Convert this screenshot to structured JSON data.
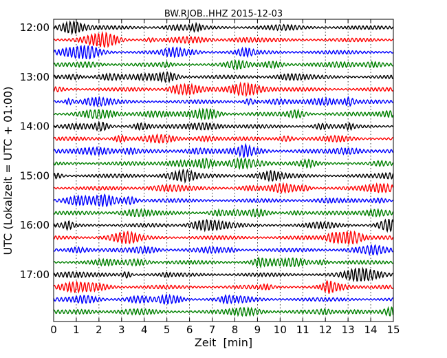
{
  "chart_data": {
    "type": "line",
    "subtype": "seismogram-dayplot",
    "title": "BW.RJOB..HHZ 2015-12-03",
    "xlabel": "Zeit  [min]",
    "ylabel": "UTC (Lokalzeit = UTC + 01:00)",
    "xlim": [
      0,
      15
    ],
    "x_ticks": [
      0,
      1,
      2,
      3,
      4,
      5,
      6,
      7,
      8,
      9,
      10,
      11,
      12,
      13,
      14,
      15
    ],
    "x_tick_labels": [
      "0",
      "1",
      "2",
      "3",
      "4",
      "5",
      "6",
      "7",
      "8",
      "9",
      "10",
      "11",
      "12",
      "13",
      "14",
      "15"
    ],
    "y_tick_labels": [
      "12:00",
      "13:00",
      "14:00",
      "15:00",
      "16:00",
      "17:00"
    ],
    "traces_per_hour": 4,
    "minutes_per_trace": 15,
    "grid": "vertical dotted lines at each minute",
    "colors": [
      "#000000",
      "#ff0000",
      "#0000ff",
      "#008000"
    ],
    "series": [
      {
        "start": "12:00",
        "color": "#000000"
      },
      {
        "start": "12:15",
        "color": "#ff0000"
      },
      {
        "start": "12:30",
        "color": "#0000ff"
      },
      {
        "start": "12:45",
        "color": "#008000"
      },
      {
        "start": "13:00",
        "color": "#000000"
      },
      {
        "start": "13:15",
        "color": "#ff0000"
      },
      {
        "start": "13:30",
        "color": "#0000ff"
      },
      {
        "start": "13:45",
        "color": "#008000"
      },
      {
        "start": "14:00",
        "color": "#000000"
      },
      {
        "start": "14:15",
        "color": "#ff0000"
      },
      {
        "start": "14:30",
        "color": "#0000ff"
      },
      {
        "start": "14:45",
        "color": "#008000"
      },
      {
        "start": "15:00",
        "color": "#000000"
      },
      {
        "start": "15:15",
        "color": "#ff0000"
      },
      {
        "start": "15:30",
        "color": "#0000ff"
      },
      {
        "start": "15:45",
        "color": "#008000"
      },
      {
        "start": "16:00",
        "color": "#000000"
      },
      {
        "start": "16:15",
        "color": "#ff0000"
      },
      {
        "start": "16:30",
        "color": "#0000ff"
      },
      {
        "start": "16:45",
        "color": "#008000"
      },
      {
        "start": "17:00",
        "color": "#000000"
      },
      {
        "start": "17:15",
        "color": "#ff0000"
      },
      {
        "start": "17:30",
        "color": "#0000ff"
      },
      {
        "start": "17:45",
        "color": "#008000"
      }
    ]
  }
}
